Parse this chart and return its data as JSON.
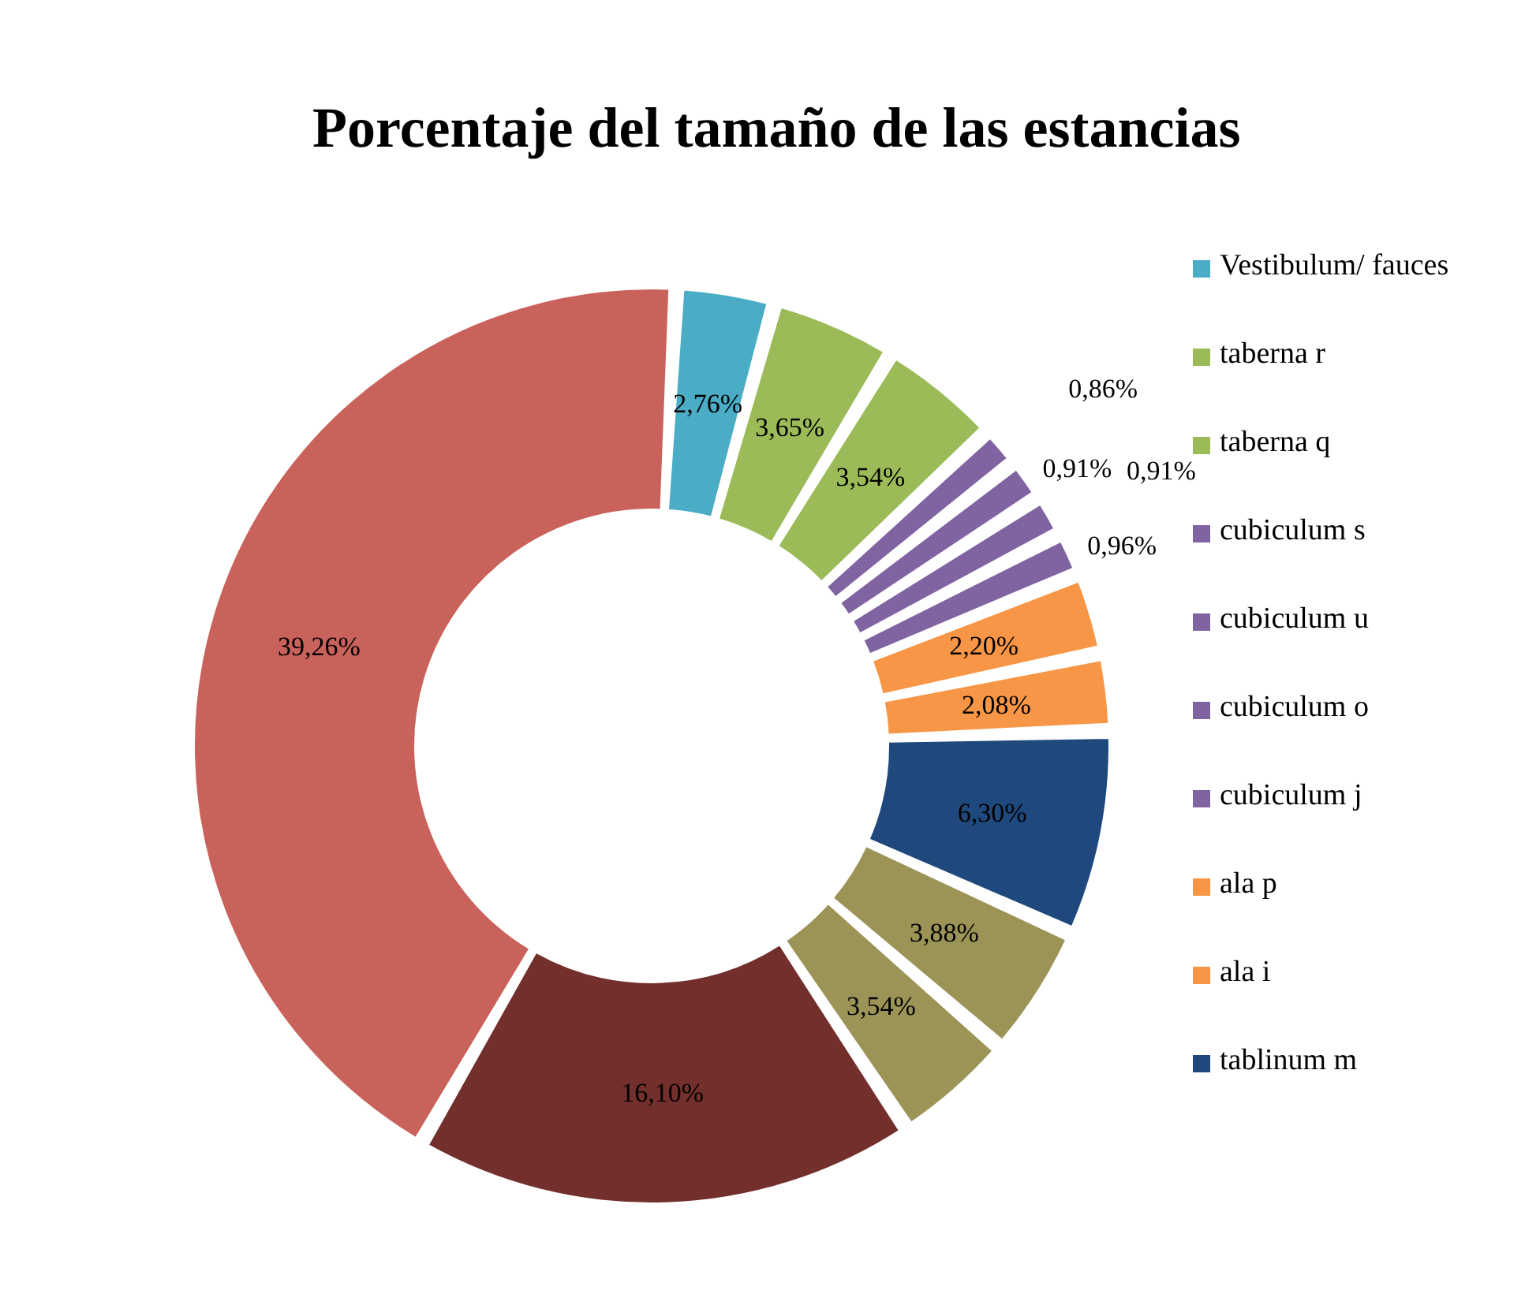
{
  "chart_data": {
    "type": "donut",
    "title": "Porcentaje del tamaño de las estancias",
    "categories": [
      "Vestibulum/ fauces",
      "taberna r",
      "taberna q",
      "cubiculum s",
      "cubiculum u",
      "cubiculum o",
      "cubiculum j",
      "ala p",
      "ala i",
      "tablinum m",
      null,
      null,
      null,
      null
    ],
    "values": [
      2.76,
      3.65,
      3.54,
      0.86,
      0.91,
      0.91,
      0.96,
      2.2,
      2.08,
      6.3,
      3.88,
      3.54,
      16.1,
      39.26
    ],
    "value_labels": [
      "2,76%",
      "3,65%",
      "3,54%",
      "0,86%",
      "0,91%",
      "0,91%",
      "0,96%",
      "2,20%",
      "2,08%",
      "6,30%",
      "3,88%",
      "3,54%",
      "16,10%",
      "39,26%"
    ],
    "colors": [
      "#4bacc6",
      "#9bbb59",
      "#9bbb59",
      "#8064a2",
      "#8064a2",
      "#8064a2",
      "#8064a2",
      "#f79646",
      "#f79646",
      "#1f497d",
      "#9c9457",
      "#9c9457",
      "#722f2c",
      "#c9625a"
    ],
    "legend": "right"
  }
}
